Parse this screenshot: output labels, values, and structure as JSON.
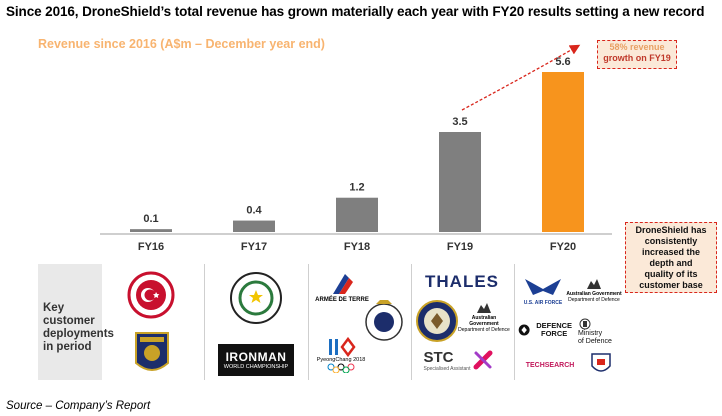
{
  "headline": "Since 2016, DroneShield’s total revenue has grown materially each year with FY20 results setting a new record",
  "chart_data": {
    "type": "bar",
    "title": "Revenue since 2016 (A$m – December year end)",
    "categories": [
      "FY16",
      "FY17",
      "FY18",
      "FY19",
      "FY20"
    ],
    "values": [
      0.1,
      0.4,
      1.2,
      3.5,
      5.6
    ],
    "value_labels": [
      "0.1",
      "0.4",
      "1.2",
      "3.5",
      "5.6"
    ],
    "ylim": [
      0,
      5.6
    ],
    "highlight_category": "FY20",
    "grid": false,
    "colors": {
      "bar": "#7f7f7f",
      "highlight": "#f7941d",
      "axis": "#bfbfbf",
      "arrow": "#d9261c",
      "title": "#f8b470"
    }
  },
  "callouts": {
    "growth_line1": "58% revenue",
    "growth_line2": "growth on FY19",
    "depth_lines": [
      "DroneShield has",
      "consistently",
      "increased the",
      "depth and",
      "quality of its",
      "customer base"
    ]
  },
  "key": {
    "lines": [
      "Key",
      "customer",
      "deployments",
      "in period"
    ]
  },
  "logos": {
    "fy16": [
      "turkish-police-seal",
      "boston-police-patch"
    ],
    "fy17": {
      "seal": "paraguay-national-seal",
      "ironman_word": "IRONMAN",
      "ironman_sub": "WORLD CHAMPIONSHIP"
    },
    "fy18": {
      "armee": "ARMÉE DE TERRE",
      "olympics": "PyeongChang 2018",
      "qld_police": "queensland-police-badge"
    },
    "fy19": {
      "thales": "THALES",
      "us_seal": "us-state-department-seal",
      "aus_gov": "Australian Government",
      "aus_dept": "Department of Defence",
      "stc": "STC",
      "stc_sub": "Specialised Assistant"
    },
    "fy20": {
      "usaf": "U.S. AIR FORCE",
      "aus_gov": "Australian Government",
      "aus_dept": "Department of Defence",
      "adf": "DEFENCE FORCE",
      "mod1": "Ministry",
      "mod2": "of Defence",
      "techsearch": "TECHSEARCH"
    }
  },
  "source": "Source – Company’s Report"
}
